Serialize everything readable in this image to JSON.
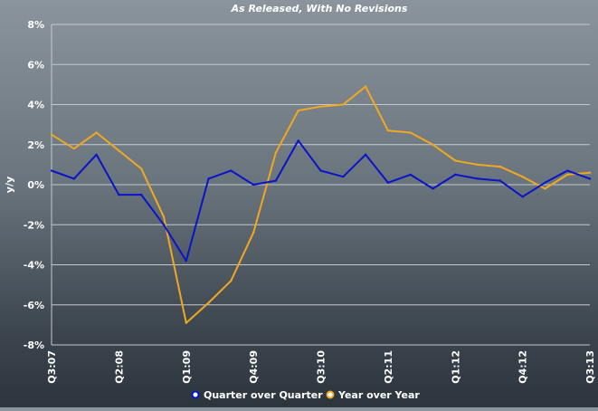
{
  "chart_data": {
    "type": "line",
    "title": "As Released, With No Revisions",
    "ylabel": "y/y",
    "xlabel": "",
    "ylim": [
      -8,
      8
    ],
    "yticks": [
      -8,
      -6,
      -4,
      -2,
      0,
      2,
      4,
      6,
      8
    ],
    "ytick_labels": [
      "-8%",
      "-6%",
      "-4%",
      "-2%",
      "0%",
      "2%",
      "4%",
      "6%",
      "8%"
    ],
    "categories": [
      "Q3:07",
      "Q4:07",
      "Q1:08",
      "Q2:08",
      "Q3:08",
      "Q4:08",
      "Q1:09",
      "Q2:09",
      "Q3:09",
      "Q4:09",
      "Q1:10",
      "Q2:10",
      "Q3:10",
      "Q4:10",
      "Q1:11",
      "Q2:11",
      "Q3:11",
      "Q4:11",
      "Q1:12",
      "Q2:12",
      "Q3:12",
      "Q4:12",
      "Q1:13",
      "Q2:13",
      "Q3:13"
    ],
    "xtick_labels": [
      "Q3:07",
      "",
      "",
      "Q2:08",
      "",
      "",
      "Q1:09",
      "",
      "",
      "Q4:09",
      "",
      "",
      "Q3:10",
      "",
      "",
      "Q2:11",
      "",
      "",
      "Q1:12",
      "",
      "",
      "Q4:12",
      "",
      "",
      "Q3:13"
    ],
    "grid": true,
    "legend_position": "bottom",
    "series": [
      {
        "name": "Quarter over Quarter",
        "color": "#0a14c8",
        "values": [
          0.7,
          0.3,
          1.5,
          -0.5,
          -0.5,
          -2.0,
          -3.8,
          0.3,
          0.7,
          0.0,
          0.2,
          2.2,
          0.7,
          0.4,
          1.5,
          0.1,
          0.5,
          -0.2,
          0.5,
          0.3,
          0.2,
          -0.6,
          0.1,
          0.7,
          0.3
        ]
      },
      {
        "name": "Year over Year",
        "color": "#f0a820",
        "values": [
          2.5,
          1.8,
          2.6,
          1.7,
          0.8,
          -1.6,
          -6.9,
          -5.9,
          -4.8,
          -2.4,
          1.6,
          3.7,
          3.9,
          4.0,
          4.9,
          2.7,
          2.6,
          2.0,
          1.2,
          1.0,
          0.9,
          0.4,
          -0.2,
          0.5,
          0.6
        ]
      }
    ]
  }
}
